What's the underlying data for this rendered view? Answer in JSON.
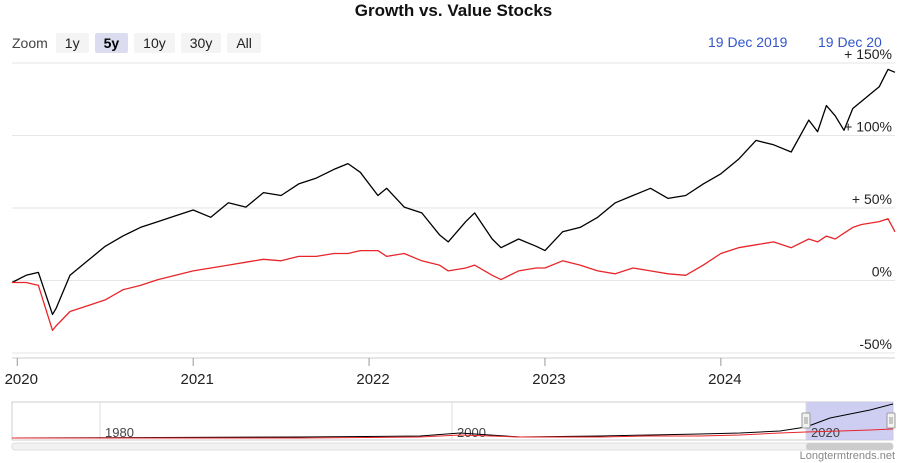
{
  "title": "Growth vs. Value Stocks",
  "zoom": {
    "label": "Zoom",
    "buttons": [
      "1y",
      "5y",
      "10y",
      "30y",
      "All"
    ],
    "active": "5y"
  },
  "range": {
    "from": "19 Dec 2019",
    "to": "19 Dec 20"
  },
  "credit": "Longtermtrends.net",
  "colors": {
    "growth": "#000000",
    "value": "#e8262a",
    "navigator_mask": "#c6c6f0",
    "range_text": "#3355cc"
  },
  "chart_data": {
    "type": "line",
    "title": "Growth vs. Value Stocks",
    "xlabel": "",
    "ylabel": "",
    "x_ticks": [
      "2020",
      "2021",
      "2022",
      "2023",
      "2024"
    ],
    "y_ticks": [
      "-50%",
      "0%",
      "+ 50%",
      "+ 100%",
      "+ 150%"
    ],
    "ylim": [
      -50,
      150
    ],
    "xlim": [
      2019.97,
      2024.99
    ],
    "grid": true,
    "legend": "none",
    "series": [
      {
        "color": "#000000",
        "x": [
          2019.97,
          2020.05,
          2020.12,
          2020.2,
          2020.22,
          2020.3,
          2020.4,
          2020.5,
          2020.6,
          2020.7,
          2020.8,
          2020.9,
          2021.0,
          2021.1,
          2021.2,
          2021.3,
          2021.4,
          2021.5,
          2021.6,
          2021.7,
          2021.8,
          2021.88,
          2021.95,
          2022.05,
          2022.1,
          2022.2,
          2022.3,
          2022.4,
          2022.45,
          2022.55,
          2022.6,
          2022.7,
          2022.75,
          2022.85,
          2022.95,
          2023.0,
          2023.1,
          2023.2,
          2023.3,
          2023.4,
          2023.5,
          2023.6,
          2023.7,
          2023.8,
          2023.9,
          2024.0,
          2024.1,
          2024.2,
          2024.3,
          2024.4,
          2024.5,
          2024.55,
          2024.6,
          2024.65,
          2024.7,
          2024.75,
          2024.8,
          2024.9,
          2024.95,
          2024.99
        ],
        "values": [
          0,
          5,
          7,
          -22,
          -18,
          5,
          15,
          25,
          32,
          38,
          42,
          46,
          50,
          45,
          55,
          52,
          62,
          60,
          68,
          72,
          78,
          82,
          76,
          60,
          65,
          52,
          48,
          33,
          28,
          42,
          48,
          30,
          24,
          30,
          25,
          22,
          35,
          38,
          45,
          55,
          60,
          65,
          58,
          60,
          68,
          75,
          85,
          98,
          95,
          90,
          112,
          104,
          122,
          115,
          105,
          120,
          125,
          135,
          147,
          145
        ]
      },
      {
        "color": "#e8262a",
        "x": [
          2019.97,
          2020.05,
          2020.12,
          2020.2,
          2020.22,
          2020.3,
          2020.4,
          2020.5,
          2020.6,
          2020.7,
          2020.8,
          2020.9,
          2021.0,
          2021.1,
          2021.2,
          2021.3,
          2021.4,
          2021.5,
          2021.6,
          2021.7,
          2021.8,
          2021.88,
          2021.95,
          2022.05,
          2022.1,
          2022.2,
          2022.3,
          2022.4,
          2022.45,
          2022.55,
          2022.6,
          2022.7,
          2022.75,
          2022.85,
          2022.95,
          2023.0,
          2023.1,
          2023.2,
          2023.3,
          2023.4,
          2023.5,
          2023.6,
          2023.7,
          2023.8,
          2023.9,
          2024.0,
          2024.1,
          2024.2,
          2024.3,
          2024.4,
          2024.5,
          2024.55,
          2024.6,
          2024.65,
          2024.7,
          2024.75,
          2024.8,
          2024.9,
          2024.95,
          2024.99
        ],
        "values": [
          0,
          0,
          -2,
          -33,
          -30,
          -20,
          -16,
          -12,
          -5,
          -2,
          2,
          5,
          8,
          10,
          12,
          14,
          16,
          15,
          18,
          18,
          20,
          20,
          22,
          22,
          18,
          20,
          15,
          12,
          8,
          10,
          12,
          5,
          2,
          8,
          10,
          10,
          15,
          12,
          8,
          6,
          10,
          8,
          6,
          5,
          12,
          20,
          24,
          26,
          28,
          24,
          30,
          28,
          32,
          30,
          34,
          38,
          40,
          42,
          44,
          35
        ]
      }
    ]
  },
  "navigator": {
    "labels": [
      "1980",
      "2000",
      "2020"
    ]
  }
}
